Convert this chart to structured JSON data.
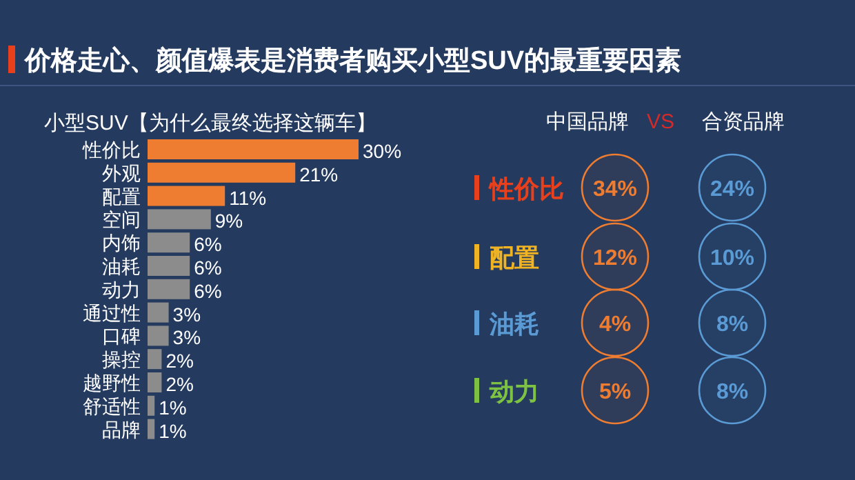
{
  "chart_data": [
    {
      "type": "bar",
      "orientation": "horizontal",
      "title": "价格走心、颜值爆表是消费者购买小型SUV的最重要因素",
      "subtitle": "小型SUV【为什么最终选择这辆车】",
      "categories": [
        "性价比",
        "外观",
        "配置",
        "空间",
        "内饰",
        "油耗",
        "动力",
        "通过性",
        "口碑",
        "操控",
        "越野性",
        "舒适性",
        "品牌"
      ],
      "values": [
        30,
        21,
        11,
        9,
        6,
        6,
        6,
        3,
        3,
        2,
        2,
        1,
        1
      ],
      "colors": [
        "#ee7d31",
        "#ee7d31",
        "#ee7d31",
        "#8c8c8c",
        "#8c8c8c",
        "#8c8c8c",
        "#8c8c8c",
        "#8c8c8c",
        "#8c8c8c",
        "#8c8c8c",
        "#8c8c8c",
        "#8c8c8c",
        "#8c8c8c"
      ],
      "value_labels": [
        "30%",
        "21%",
        "11%",
        "9%",
        "6%",
        "6%",
        "6%",
        "3%",
        "3%",
        "2%",
        "2%",
        "1%",
        "1%"
      ]
    },
    {
      "type": "other",
      "categories": [
        "性价比",
        "配置",
        "油耗",
        "动力"
      ],
      "colors": [
        "#e8401c",
        "#f0b323",
        "#5b9bd5",
        "#7dc242"
      ],
      "annotations": [
        "VS"
      ],
      "series": [
        {
          "name": "中国品牌",
          "color": "#ee7d31",
          "values": [
            34,
            12,
            4,
            5
          ],
          "value_labels": [
            "34%",
            "12%",
            "4%",
            "5%"
          ]
        },
        {
          "name": "合资品牌",
          "color": "#5b9bd5",
          "values": [
            24,
            10,
            8,
            8
          ],
          "value_labels": [
            "24%",
            "10%",
            "8%",
            "8%"
          ]
        }
      ]
    }
  ]
}
